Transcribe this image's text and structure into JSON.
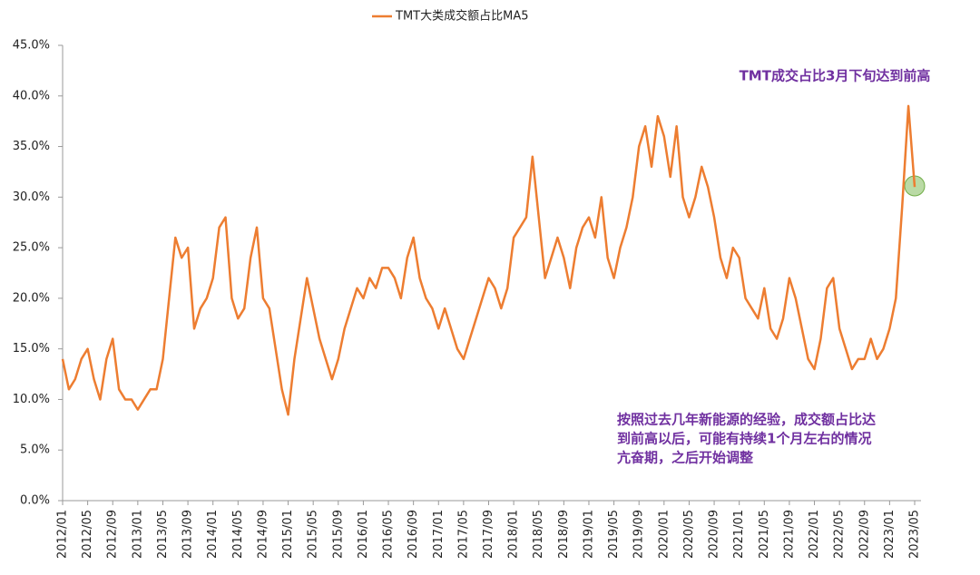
{
  "chart_data": {
    "type": "line",
    "legend_position": "top",
    "categories": [
      "2012/01",
      null,
      null,
      null,
      "2012/05",
      null,
      null,
      null,
      "2012/09",
      null,
      null,
      null,
      "2013/01",
      null,
      null,
      null,
      "2013/05",
      null,
      null,
      null,
      "2013/09",
      null,
      null,
      null,
      "2014/01",
      null,
      null,
      null,
      "2014/05",
      null,
      null,
      null,
      "2014/09",
      null,
      null,
      null,
      "2015/01",
      null,
      null,
      null,
      "2015/05",
      null,
      null,
      null,
      "2015/09",
      null,
      null,
      null,
      "2016/01",
      null,
      null,
      null,
      "2016/05",
      null,
      null,
      null,
      "2016/09",
      null,
      null,
      null,
      "2017/01",
      null,
      null,
      null,
      "2017/05",
      null,
      null,
      null,
      "2017/09",
      null,
      null,
      null,
      "2018/01",
      null,
      null,
      null,
      "2018/05",
      null,
      null,
      null,
      "2018/09",
      null,
      null,
      null,
      "2019/01",
      null,
      null,
      null,
      "2019/05",
      null,
      null,
      null,
      "2019/09",
      null,
      null,
      null,
      "2020/01",
      null,
      null,
      null,
      "2020/05",
      null,
      null,
      null,
      "2020/09",
      null,
      null,
      null,
      "2021/01",
      null,
      null,
      null,
      "2021/05",
      null,
      null,
      null,
      "2021/09",
      null,
      null,
      null,
      "2022/01",
      null,
      null,
      null,
      "2022/05",
      null,
      null,
      null,
      "2022/09",
      null,
      null,
      null,
      "2023/01",
      null,
      null,
      null,
      "2023/05"
    ],
    "series": [
      {
        "name": "TMT大类成交额占比MA5",
        "color": "#ed7d31",
        "values": [
          14,
          11,
          12,
          14,
          15,
          12,
          10,
          14,
          16,
          11,
          10,
          10,
          9,
          10,
          11,
          11,
          14,
          20,
          26,
          24,
          25,
          17,
          19,
          20,
          22,
          27,
          28,
          20,
          18,
          19,
          24,
          27,
          20,
          19,
          15,
          11,
          8.5,
          14,
          18,
          22,
          19,
          16,
          14,
          12,
          14,
          17,
          19,
          21,
          20,
          22,
          21,
          23,
          23,
          22,
          20,
          24,
          26,
          22,
          20,
          19,
          17,
          19,
          17,
          15,
          14,
          16,
          18,
          20,
          22,
          21,
          19,
          21,
          26,
          27,
          28,
          34,
          28,
          22,
          24,
          26,
          24,
          21,
          25,
          27,
          28,
          26,
          30,
          24,
          22,
          25,
          27,
          30,
          35,
          37,
          33,
          38,
          36,
          32,
          37,
          30,
          28,
          30,
          33,
          31,
          28,
          24,
          22,
          25,
          24,
          20,
          19,
          18,
          21,
          17,
          16,
          18,
          22,
          20,
          17,
          14,
          13,
          16,
          21,
          22,
          17,
          15,
          13,
          14,
          14,
          16,
          14,
          15,
          17,
          20,
          29,
          39,
          31
        ]
      }
    ],
    "ylim": [
      0,
      45
    ],
    "yticks": [
      {
        "value": 0,
        "label": "0.0%"
      },
      {
        "value": 5,
        "label": "5.0%"
      },
      {
        "value": 10,
        "label": "10.0%"
      },
      {
        "value": 15,
        "label": "15.0%"
      },
      {
        "value": 20,
        "label": "20.0%"
      },
      {
        "value": 25,
        "label": "25.0%"
      },
      {
        "value": 30,
        "label": "30.0%"
      },
      {
        "value": 35,
        "label": "35.0%"
      },
      {
        "value": 40,
        "label": "40.0%"
      },
      {
        "value": 45,
        "label": "45.0%"
      }
    ],
    "annotations": [
      "TMT成交占比3月下旬达到前高",
      "按照过去几年新能源的经验，成交额占比达",
      "到前高以后，可能有持续1个月左右的情况",
      "亢奋期，之后开始调整"
    ]
  }
}
